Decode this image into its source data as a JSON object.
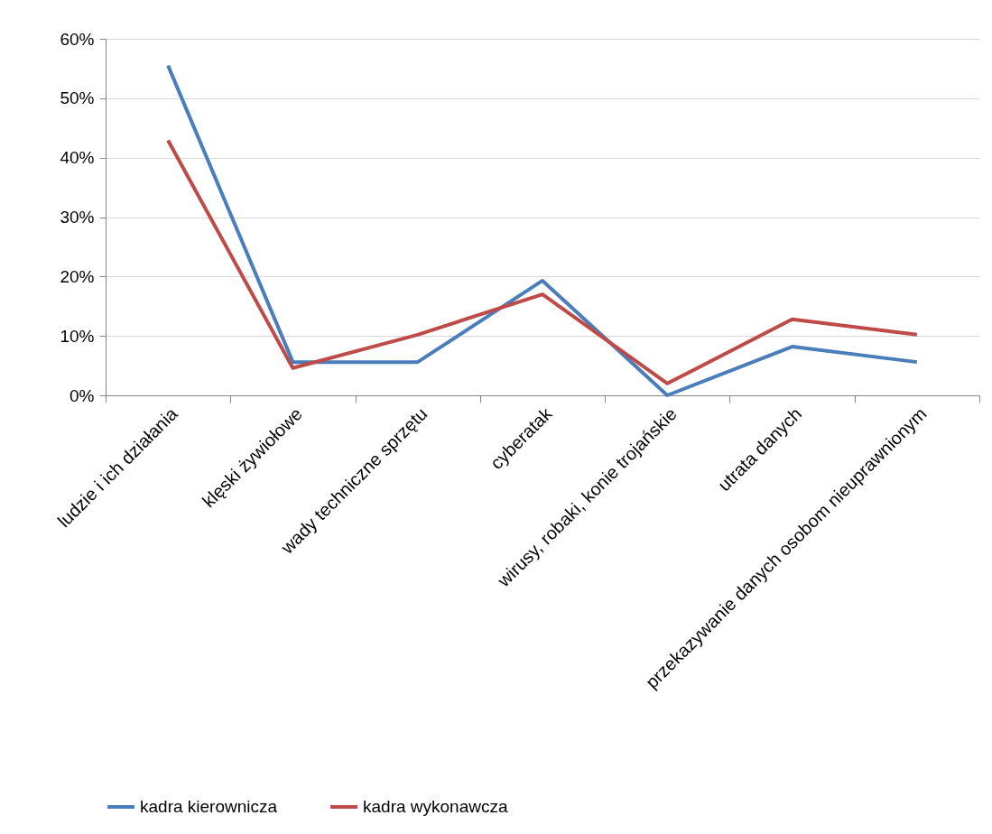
{
  "chart_data": {
    "type": "line",
    "categories": [
      "ludzie i ich działania",
      "klęski żywiołowe",
      "wady techniczne sprzętu",
      "cyberatak",
      "wirusy, robaki, konie trojańskie",
      "utrata danych",
      "przekazywanie danych osobom nieuprawnionym"
    ],
    "series": [
      {
        "name": "kadra kierownicza",
        "color": "#4a7ebb",
        "values": [
          55.5,
          5.6,
          5.6,
          19.3,
          0,
          8.2,
          5.6
        ]
      },
      {
        "name": "kadra wykonawcza",
        "color": "#be4b48",
        "values": [
          42.9,
          4.6,
          10.2,
          17.0,
          2.0,
          12.8,
          10.2
        ]
      }
    ],
    "ylim": [
      0,
      60
    ],
    "yticks": [
      {
        "value": 0,
        "label": "0%"
      },
      {
        "value": 10,
        "label": "10%"
      },
      {
        "value": 20,
        "label": "20%"
      },
      {
        "value": 30,
        "label": "30%"
      },
      {
        "value": 40,
        "label": "40%"
      },
      {
        "value": 50,
        "label": "50%"
      },
      {
        "value": 60,
        "label": "60%"
      }
    ],
    "grid": "y",
    "legend": "bottom",
    "marker": "none",
    "line_style": "solid"
  }
}
